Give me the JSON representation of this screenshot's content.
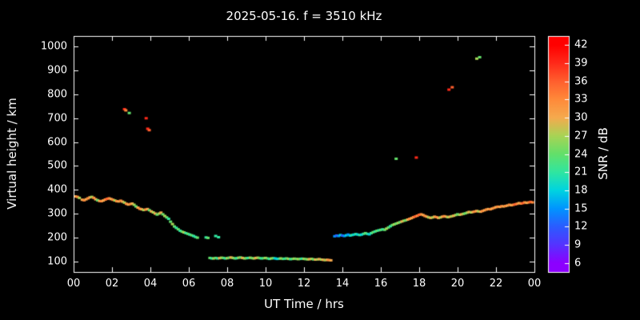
{
  "page": {
    "background": "#000000",
    "foreground": "#ffffff"
  },
  "chart_data": {
    "type": "scatter",
    "title": "2025-05-16. f = 3510 kHz",
    "xlabel": "UT Time / hrs",
    "ylabel": "Virtual height / km",
    "colorbar_label": "SNR / dB",
    "grid": false,
    "legend": null,
    "xlim": [
      0,
      24
    ],
    "ylim": [
      55,
      1045
    ],
    "x_ticks": {
      "values": [
        0,
        2,
        4,
        6,
        8,
        10,
        12,
        14,
        16,
        18,
        20,
        22,
        24
      ],
      "labels": [
        "00",
        "02",
        "04",
        "06",
        "08",
        "10",
        "12",
        "14",
        "16",
        "18",
        "20",
        "22",
        "00"
      ]
    },
    "y_ticks": {
      "values": [
        100,
        200,
        300,
        400,
        500,
        600,
        700,
        800,
        900,
        1000
      ],
      "labels": [
        "100",
        "200",
        "300",
        "400",
        "500",
        "600",
        "700",
        "800",
        "900",
        "1000"
      ]
    },
    "colorbar": {
      "range": [
        4.5,
        43.5
      ],
      "tick_values": [
        6,
        9,
        12,
        15,
        18,
        21,
        24,
        27,
        30,
        33,
        36,
        39,
        42
      ],
      "tick_labels": [
        "6",
        "9",
        "12",
        "15",
        "18",
        "21",
        "24",
        "27",
        "30",
        "33",
        "36",
        "39",
        "42"
      ],
      "stops": [
        {
          "v": 6,
          "c": "#8c00ff"
        },
        {
          "v": 9,
          "c": "#5533ff"
        },
        {
          "v": 12,
          "c": "#2b5cff"
        },
        {
          "v": 15,
          "c": "#0095ff"
        },
        {
          "v": 18,
          "c": "#00d4e0"
        },
        {
          "v": 21,
          "c": "#30e6a0"
        },
        {
          "v": 24,
          "c": "#63e06a"
        },
        {
          "v": 27,
          "c": "#a8d455"
        },
        {
          "v": 30,
          "c": "#f5aa4e"
        },
        {
          "v": 33,
          "c": "#ff8a3a"
        },
        {
          "v": 36,
          "c": "#ff5f2e"
        },
        {
          "v": 39,
          "c": "#ff2a1a"
        },
        {
          "v": 42,
          "c": "#ff0000"
        }
      ]
    },
    "points": [
      [
        0.0,
        375,
        33
      ],
      [
        0.1,
        372,
        30
      ],
      [
        0.2,
        370,
        33
      ],
      [
        0.3,
        366,
        27
      ],
      [
        0.45,
        358,
        30
      ],
      [
        0.55,
        356,
        33
      ],
      [
        0.65,
        360,
        30
      ],
      [
        0.75,
        364,
        33
      ],
      [
        0.85,
        368,
        30
      ],
      [
        0.95,
        370,
        27
      ],
      [
        1.05,
        366,
        33
      ],
      [
        1.15,
        360,
        30
      ],
      [
        1.25,
        356,
        24
      ],
      [
        1.35,
        353,
        30
      ],
      [
        1.45,
        352,
        33
      ],
      [
        1.55,
        355,
        30
      ],
      [
        1.65,
        359,
        33
      ],
      [
        1.75,
        362,
        36
      ],
      [
        1.85,
        364,
        33
      ],
      [
        1.95,
        361,
        30
      ],
      [
        2.05,
        358,
        33
      ],
      [
        2.15,
        355,
        27
      ],
      [
        2.25,
        352,
        33
      ],
      [
        2.35,
        351,
        30
      ],
      [
        2.45,
        354,
        33
      ],
      [
        2.55,
        350,
        30
      ],
      [
        2.65,
        346,
        27
      ],
      [
        2.75,
        341,
        33
      ],
      [
        2.85,
        338,
        30
      ],
      [
        2.95,
        340,
        33
      ],
      [
        3.05,
        342,
        30
      ],
      [
        3.15,
        337,
        27
      ],
      [
        3.25,
        330,
        24
      ],
      [
        3.35,
        325,
        30
      ],
      [
        3.45,
        320,
        33
      ],
      [
        3.55,
        318,
        30
      ],
      [
        3.65,
        315,
        27
      ],
      [
        3.75,
        317,
        33
      ],
      [
        3.85,
        319,
        30
      ],
      [
        3.95,
        314,
        24
      ],
      [
        4.05,
        309,
        30
      ],
      [
        4.15,
        305,
        27
      ],
      [
        4.25,
        300,
        30
      ],
      [
        4.35,
        296,
        24
      ],
      [
        4.45,
        300,
        27
      ],
      [
        4.55,
        304,
        30
      ],
      [
        4.65,
        297,
        24
      ],
      [
        4.75,
        290,
        27
      ],
      [
        4.85,
        284,
        24
      ],
      [
        4.95,
        278,
        21
      ],
      [
        5.05,
        266,
        24
      ],
      [
        5.15,
        256,
        27
      ],
      [
        5.25,
        246,
        24
      ],
      [
        5.35,
        240,
        21
      ],
      [
        5.45,
        234,
        24
      ],
      [
        5.55,
        228,
        21
      ],
      [
        5.65,
        224,
        24
      ],
      [
        5.75,
        221,
        27
      ],
      [
        5.85,
        218,
        21
      ],
      [
        5.95,
        215,
        24
      ],
      [
        6.05,
        212,
        21
      ],
      [
        6.15,
        209,
        24
      ],
      [
        6.25,
        206,
        21
      ],
      [
        6.35,
        202,
        21
      ],
      [
        6.45,
        199,
        24
      ],
      [
        6.9,
        200,
        21
      ],
      [
        7.0,
        198,
        24
      ],
      [
        7.4,
        206,
        21
      ],
      [
        7.55,
        201,
        21
      ],
      [
        2.65,
        738,
        39
      ],
      [
        2.72,
        733,
        33
      ],
      [
        2.9,
        722,
        24
      ],
      [
        3.78,
        700,
        39
      ],
      [
        3.86,
        656,
        39
      ],
      [
        3.94,
        650,
        36
      ],
      [
        16.8,
        530,
        24
      ],
      [
        17.85,
        535,
        39
      ],
      [
        19.55,
        820,
        39
      ],
      [
        19.72,
        830,
        36
      ],
      [
        21.0,
        950,
        27
      ],
      [
        21.15,
        956,
        24
      ],
      [
        7.1,
        114,
        24
      ],
      [
        7.2,
        112,
        21
      ],
      [
        7.3,
        112,
        27
      ],
      [
        7.4,
        114,
        24
      ],
      [
        7.5,
        112,
        21
      ],
      [
        7.6,
        113,
        30
      ],
      [
        7.7,
        115,
        27
      ],
      [
        7.8,
        114,
        24
      ],
      [
        7.9,
        112,
        21
      ],
      [
        8.0,
        113,
        27
      ],
      [
        8.1,
        115,
        24
      ],
      [
        8.2,
        116,
        30
      ],
      [
        8.3,
        114,
        27
      ],
      [
        8.4,
        112,
        24
      ],
      [
        8.5,
        113,
        21
      ],
      [
        8.6,
        115,
        27
      ],
      [
        8.7,
        116,
        24
      ],
      [
        8.8,
        114,
        30
      ],
      [
        8.9,
        112,
        27
      ],
      [
        9.0,
        113,
        24
      ],
      [
        9.1,
        114,
        21
      ],
      [
        9.2,
        115,
        27
      ],
      [
        9.3,
        113,
        24
      ],
      [
        9.4,
        112,
        27
      ],
      [
        9.5,
        114,
        30
      ],
      [
        9.6,
        115,
        27
      ],
      [
        9.7,
        113,
        24
      ],
      [
        9.8,
        112,
        21
      ],
      [
        9.9,
        113,
        24
      ],
      [
        10.0,
        114,
        27
      ],
      [
        10.1,
        112,
        24
      ],
      [
        10.2,
        110,
        21
      ],
      [
        10.3,
        112,
        27
      ],
      [
        10.4,
        113,
        24
      ],
      [
        10.5,
        112,
        18
      ],
      [
        10.6,
        110,
        18
      ],
      [
        10.7,
        111,
        21
      ],
      [
        10.8,
        112,
        27
      ],
      [
        10.9,
        110,
        24
      ],
      [
        11.0,
        111,
        21
      ],
      [
        11.1,
        112,
        24
      ],
      [
        11.2,
        110,
        27
      ],
      [
        11.3,
        109,
        21
      ],
      [
        11.4,
        110,
        24
      ],
      [
        11.5,
        111,
        27
      ],
      [
        11.6,
        110,
        24
      ],
      [
        11.7,
        109,
        27
      ],
      [
        11.8,
        110,
        24
      ],
      [
        11.9,
        111,
        21
      ],
      [
        12.0,
        110,
        27
      ],
      [
        12.1,
        109,
        24
      ],
      [
        12.2,
        108,
        27
      ],
      [
        12.3,
        109,
        30
      ],
      [
        12.4,
        110,
        27
      ],
      [
        12.5,
        108,
        24
      ],
      [
        12.6,
        107,
        30
      ],
      [
        12.7,
        108,
        27
      ],
      [
        12.8,
        109,
        30
      ],
      [
        12.9,
        107,
        27
      ],
      [
        13.0,
        106,
        30
      ],
      [
        13.1,
        105,
        27
      ],
      [
        13.2,
        106,
        30
      ],
      [
        13.3,
        105,
        33
      ],
      [
        13.4,
        104,
        30
      ],
      [
        13.6,
        205,
        15
      ],
      [
        13.7,
        208,
        12
      ],
      [
        13.8,
        206,
        15
      ],
      [
        13.9,
        210,
        18
      ],
      [
        14.0,
        208,
        12
      ],
      [
        14.1,
        206,
        15
      ],
      [
        14.2,
        209,
        18
      ],
      [
        14.3,
        212,
        15
      ],
      [
        14.4,
        208,
        18
      ],
      [
        14.5,
        210,
        21
      ],
      [
        14.6,
        212,
        18
      ],
      [
        14.7,
        214,
        21
      ],
      [
        14.8,
        212,
        18
      ],
      [
        14.9,
        210,
        21
      ],
      [
        15.0,
        212,
        18
      ],
      [
        15.1,
        215,
        21
      ],
      [
        15.2,
        218,
        24
      ],
      [
        15.3,
        215,
        21
      ],
      [
        15.4,
        213,
        18
      ],
      [
        15.5,
        218,
        21
      ],
      [
        15.6,
        222,
        24
      ],
      [
        15.7,
        225,
        21
      ],
      [
        15.8,
        228,
        24
      ],
      [
        15.9,
        230,
        21
      ],
      [
        16.0,
        232,
        24
      ],
      [
        16.1,
        234,
        21
      ],
      [
        16.2,
        232,
        24
      ],
      [
        16.3,
        237,
        27
      ],
      [
        16.4,
        242,
        24
      ],
      [
        16.5,
        247,
        21
      ],
      [
        16.6,
        252,
        24
      ],
      [
        16.7,
        255,
        27
      ],
      [
        16.8,
        258,
        24
      ],
      [
        16.9,
        261,
        27
      ],
      [
        17.0,
        264,
        24
      ],
      [
        17.1,
        267,
        30
      ],
      [
        17.2,
        270,
        27
      ],
      [
        17.3,
        272,
        24
      ],
      [
        17.4,
        275,
        30
      ],
      [
        17.5,
        278,
        33
      ],
      [
        17.6,
        281,
        30
      ],
      [
        17.7,
        285,
        33
      ],
      [
        17.8,
        288,
        36
      ],
      [
        17.9,
        291,
        33
      ],
      [
        18.0,
        295,
        36
      ],
      [
        18.1,
        297,
        33
      ],
      [
        18.2,
        294,
        30
      ],
      [
        18.3,
        290,
        33
      ],
      [
        18.4,
        287,
        30
      ],
      [
        18.5,
        284,
        27
      ],
      [
        18.6,
        282,
        30
      ],
      [
        18.7,
        284,
        27
      ],
      [
        18.8,
        287,
        30
      ],
      [
        18.9,
        285,
        33
      ],
      [
        19.0,
        282,
        30
      ],
      [
        19.1,
        284,
        27
      ],
      [
        19.2,
        287,
        30
      ],
      [
        19.3,
        289,
        33
      ],
      [
        19.4,
        287,
        30
      ],
      [
        19.5,
        285,
        27
      ],
      [
        19.6,
        287,
        30
      ],
      [
        19.7,
        289,
        27
      ],
      [
        19.8,
        291,
        30
      ],
      [
        19.9,
        294,
        27
      ],
      [
        20.0,
        297,
        24
      ],
      [
        20.1,
        295,
        27
      ],
      [
        20.2,
        297,
        30
      ],
      [
        20.3,
        299,
        27
      ],
      [
        20.4,
        301,
        24
      ],
      [
        20.5,
        304,
        27
      ],
      [
        20.6,
        307,
        30
      ],
      [
        20.7,
        305,
        27
      ],
      [
        20.8,
        307,
        30
      ],
      [
        20.9,
        309,
        33
      ],
      [
        21.0,
        311,
        30
      ],
      [
        21.1,
        309,
        27
      ],
      [
        21.2,
        308,
        30
      ],
      [
        21.3,
        311,
        33
      ],
      [
        21.4,
        314,
        30
      ],
      [
        21.5,
        317,
        33
      ],
      [
        21.6,
        319,
        30
      ],
      [
        21.7,
        318,
        33
      ],
      [
        21.8,
        321,
        30
      ],
      [
        21.9,
        324,
        33
      ],
      [
        22.0,
        327,
        30
      ],
      [
        22.1,
        329,
        33
      ],
      [
        22.2,
        328,
        30
      ],
      [
        22.3,
        331,
        33
      ],
      [
        22.4,
        330,
        30
      ],
      [
        22.5,
        332,
        33
      ],
      [
        22.6,
        334,
        30
      ],
      [
        22.7,
        337,
        33
      ],
      [
        22.8,
        335,
        30
      ],
      [
        22.9,
        337,
        33
      ],
      [
        23.0,
        339,
        36
      ],
      [
        23.1,
        341,
        33
      ],
      [
        23.2,
        344,
        30
      ],
      [
        23.3,
        342,
        33
      ],
      [
        23.4,
        344,
        36
      ],
      [
        23.5,
        347,
        33
      ],
      [
        23.6,
        345,
        30
      ],
      [
        23.7,
        347,
        33
      ],
      [
        23.8,
        349,
        36
      ],
      [
        23.9,
        347,
        33
      ],
      [
        24.0,
        345,
        33
      ]
    ]
  }
}
